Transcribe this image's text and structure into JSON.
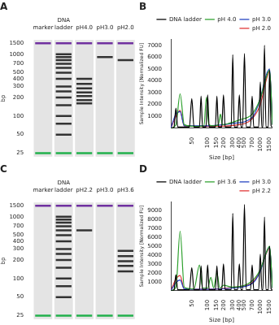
{
  "chart_data": [
    {
      "type": "gel",
      "title": "A",
      "ylabel": "bp",
      "log": "y",
      "ylim": [
        22,
        1700
      ],
      "yticks": [
        25,
        50,
        100,
        200,
        300,
        400,
        500,
        700,
        1000,
        1500
      ],
      "series": [
        {
          "name": "marker",
          "values": [
            1500,
            25
          ],
          "colors": [
            "#7030a0",
            "#22b14c"
          ]
        },
        {
          "name": "DNA ladder",
          "values": [
            1500,
            1000,
            900,
            800,
            700,
            600,
            500,
            400,
            300,
            250,
            200,
            150,
            100,
            75,
            50,
            25
          ],
          "colors": [
            "#7030a0",
            "#333333",
            "#333333",
            "#333333",
            "#333333",
            "#333333",
            "#333333",
            "#333333",
            "#333333",
            "#333333",
            "#333333",
            "#333333",
            "#333333",
            "#333333",
            "#333333",
            "#22b14c"
          ]
        },
        {
          "name": "pH4.0",
          "values": [
            1500,
            400,
            330,
            280,
            240,
            210,
            180,
            160,
            25
          ],
          "colors": [
            "#7030a0",
            "#333333",
            "#333333",
            "#333333",
            "#333333",
            "#333333",
            "#333333",
            "#333333",
            "#22b14c"
          ]
        },
        {
          "name": "pH3.0",
          "values": [
            1500,
            900,
            25
          ],
          "colors": [
            "#7030a0",
            "#333333",
            "#22b14c"
          ]
        },
        {
          "name": "pH2.0",
          "values": [
            1500,
            800,
            25
          ],
          "colors": [
            "#7030a0",
            "#333333",
            "#22b14c"
          ]
        }
      ]
    },
    {
      "type": "line",
      "title": "B",
      "xlabel": "Size [bp]",
      "ylabel": "Sample Intensity [Normalized FU]",
      "log": "x",
      "xlim": [
        20,
        1700
      ],
      "xticks": [
        50,
        100,
        150,
        200,
        300,
        400,
        500,
        700,
        1000,
        1500
      ],
      "ylim": [
        0,
        7500
      ],
      "yticks": [
        1000,
        2000,
        3000,
        4000,
        5000,
        6000,
        7000
      ],
      "grid": false,
      "legend": "upper right",
      "series": [
        {
          "name": "DNA ladder",
          "color": "#000000",
          "x": [
            20,
            23,
            25,
            27,
            45,
            50,
            55,
            70,
            75,
            80,
            93,
            100,
            107,
            140,
            150,
            160,
            185,
            200,
            215,
            280,
            300,
            320,
            370,
            400,
            430,
            460,
            500,
            540,
            650,
            700,
            750,
            930,
            1000,
            1070,
            1120,
            1200,
            1280,
            1420,
            1500,
            1600,
            1700
          ],
          "values": [
            0,
            100,
            1700,
            100,
            100,
            2500,
            100,
            100,
            2700,
            100,
            100,
            2800,
            100,
            100,
            2700,
            100,
            100,
            2800,
            100,
            100,
            6200,
            100,
            100,
            2800,
            100,
            100,
            6300,
            100,
            100,
            2700,
            100,
            100,
            3900,
            100,
            100,
            7000,
            100,
            100,
            4900,
            200,
            100
          ]
        },
        {
          "name": "pH 4.0",
          "color": "#2ca02c",
          "x": [
            20,
            25,
            30,
            36,
            60,
            85,
            95,
            105,
            130,
            160,
            175,
            190,
            250,
            400,
            700,
            1000,
            1300,
            1500,
            1700
          ],
          "values": [
            0,
            300,
            2900,
            300,
            150,
            200,
            2600,
            300,
            200,
            300,
            1200,
            300,
            400,
            700,
            1200,
            2500,
            4300,
            4900,
            300
          ]
        },
        {
          "name": "pH 3.0",
          "color": "#1f3fbf",
          "x": [
            20,
            25,
            30,
            36,
            100,
            300,
            700,
            1000,
            1300,
            1500,
            1700
          ],
          "values": [
            0,
            1200,
            1400,
            200,
            200,
            400,
            900,
            2500,
            4500,
            5000,
            300
          ]
        },
        {
          "name": "pH 2.0",
          "color": "#e03030",
          "x": [
            20,
            25,
            30,
            36,
            100,
            400,
            700,
            1000,
            1300,
            1500,
            1700
          ],
          "values": [
            0,
            1000,
            1500,
            200,
            150,
            300,
            800,
            2000,
            4100,
            4800,
            300
          ]
        }
      ]
    },
    {
      "type": "gel",
      "title": "C",
      "ylabel": "bp",
      "log": "y",
      "ylim": [
        22,
        1700
      ],
      "yticks": [
        25,
        50,
        100,
        200,
        300,
        400,
        500,
        700,
        1000,
        1500
      ],
      "series": [
        {
          "name": "marker",
          "values": [
            1500,
            25
          ],
          "colors": [
            "#7030a0",
            "#22b14c"
          ]
        },
        {
          "name": "DNA ladder",
          "values": [
            1500,
            1000,
            900,
            800,
            700,
            600,
            500,
            400,
            300,
            250,
            200,
            150,
            100,
            75,
            50,
            25
          ],
          "colors": [
            "#7030a0",
            "#333333",
            "#333333",
            "#333333",
            "#333333",
            "#333333",
            "#333333",
            "#333333",
            "#333333",
            "#333333",
            "#333333",
            "#333333",
            "#333333",
            "#333333",
            "#333333",
            "#22b14c"
          ]
        },
        {
          "name": "pH2.2",
          "values": [
            1500,
            600,
            25
          ],
          "colors": [
            "#7030a0",
            "#333333",
            "#22b14c"
          ]
        },
        {
          "name": "pH3.0",
          "values": [
            1500,
            25
          ],
          "colors": [
            "#7030a0",
            "#22b14c"
          ]
        },
        {
          "name": "pH3.6",
          "values": [
            1500,
            280,
            230,
            190,
            160,
            130,
            25
          ],
          "colors": [
            "#7030a0",
            "#333333",
            "#333333",
            "#333333",
            "#333333",
            "#333333",
            "#22b14c"
          ]
        }
      ]
    },
    {
      "type": "line",
      "title": "D",
      "xlabel": "Size [bp]",
      "ylabel": "Sample Intensity [Normalized FU]",
      "log": "x",
      "xlim": [
        20,
        1700
      ],
      "xticks": [
        50,
        100,
        150,
        200,
        300,
        400,
        500,
        700,
        1000,
        1500
      ],
      "ylim": [
        0,
        10000
      ],
      "yticks": [
        1000,
        2000,
        3000,
        4000,
        5000,
        6000,
        7000,
        8000,
        9000
      ],
      "grid": false,
      "legend": "upper right",
      "series": [
        {
          "name": "DNA ladder",
          "color": "#000000",
          "x": [
            20,
            23,
            25,
            27,
            45,
            50,
            55,
            70,
            75,
            80,
            93,
            100,
            107,
            140,
            150,
            160,
            185,
            200,
            215,
            280,
            300,
            320,
            370,
            400,
            430,
            460,
            500,
            540,
            650,
            700,
            750,
            930,
            1000,
            1070,
            1120,
            1200,
            1280,
            1420,
            1500,
            1600,
            1700
          ],
          "values": [
            0,
            100,
            1800,
            100,
            100,
            2600,
            100,
            100,
            2800,
            100,
            100,
            2900,
            100,
            100,
            2800,
            100,
            100,
            3000,
            100,
            100,
            8700,
            100,
            100,
            3000,
            100,
            100,
            9700,
            100,
            100,
            2900,
            100,
            100,
            4100,
            100,
            100,
            8300,
            100,
            100,
            5000,
            200,
            100
          ]
        },
        {
          "name": "pH 3.6",
          "color": "#2ca02c",
          "x": [
            20,
            25,
            30,
            36,
            55,
            70,
            80,
            100,
            115,
            130,
            150,
            170,
            200,
            300,
            700,
            1000,
            1300,
            1500,
            1700
          ],
          "values": [
            0,
            400,
            6700,
            400,
            200,
            2900,
            300,
            300,
            1500,
            300,
            2000,
            300,
            600,
            400,
            1100,
            2400,
            4300,
            5000,
            300
          ]
        },
        {
          "name": "pH 3.0",
          "color": "#1f3fbf",
          "x": [
            20,
            25,
            30,
            36,
            100,
            300,
            700,
            1000,
            1300,
            1500,
            1700
          ],
          "values": [
            0,
            900,
            1200,
            200,
            150,
            300,
            800,
            2200,
            4300,
            4900,
            300
          ]
        },
        {
          "name": "pH 2.2",
          "color": "#e03030",
          "x": [
            20,
            25,
            30,
            36,
            100,
            300,
            700,
            1000,
            1300,
            1500,
            1700
          ],
          "values": [
            0,
            1300,
            1700,
            200,
            150,
            350,
            900,
            2300,
            4200,
            4800,
            300
          ]
        }
      ]
    }
  ]
}
